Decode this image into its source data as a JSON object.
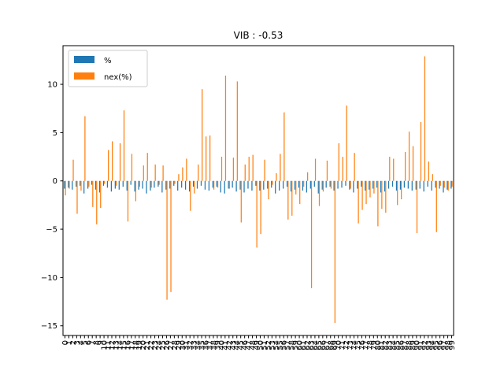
{
  "chart_data": {
    "type": "bar",
    "title": "VIB : -0.53",
    "xlabel": "",
    "ylabel": "",
    "ylim": [
      -16,
      14
    ],
    "yticks": [
      -15,
      -10,
      -5,
      0,
      5,
      10
    ],
    "grid": false,
    "legend_position": "top-left",
    "categories": [
      "0",
      "1",
      "2",
      "3",
      "4",
      "5",
      "6",
      "7",
      "8",
      "9",
      "10",
      "11",
      "12",
      "13",
      "14",
      "15",
      "16",
      "17",
      "18",
      "19",
      "20",
      "21",
      "22",
      "23",
      "24",
      "25",
      "26",
      "27",
      "28",
      "29",
      "30",
      "31",
      "32",
      "33",
      "34",
      "35",
      "36",
      "37",
      "38",
      "39",
      "40",
      "41",
      "42",
      "43",
      "44",
      "45",
      "46",
      "47",
      "48",
      "49",
      "50",
      "51",
      "52",
      "53",
      "54",
      "55",
      "56",
      "57",
      "58",
      "59",
      "60",
      "61",
      "62",
      "63",
      "64",
      "65",
      "66",
      "67",
      "68",
      "69",
      "70",
      "71",
      "72",
      "73",
      "74",
      "75",
      "76",
      "77",
      "78",
      "79",
      "80",
      "81",
      "82",
      "83",
      "84",
      "85",
      "86",
      "87",
      "88",
      "89",
      "90",
      "91",
      "92",
      "93",
      "94",
      "95",
      "96",
      "97",
      "98",
      "99"
    ],
    "series": [
      {
        "name": "%",
        "color": "#1f77b4",
        "values": [
          -0.8,
          -0.7,
          -0.9,
          -0.6,
          -0.5,
          -1.3,
          -0.8,
          -0.4,
          -0.9,
          -1.2,
          -0.5,
          -0.7,
          -1.1,
          -0.8,
          -0.9,
          -0.6,
          -1.0,
          -0.4,
          -1.1,
          -0.9,
          -0.8,
          -1.3,
          -1.0,
          -0.7,
          -0.6,
          -1.2,
          -0.9,
          -0.8,
          -0.5,
          -1.0,
          -0.7,
          -0.9,
          -1.1,
          -0.6,
          -0.8,
          -0.5,
          -0.9,
          -1.0,
          -0.7,
          -0.6,
          -1.2,
          -1.3,
          -0.8,
          -0.7,
          -1.1,
          -0.9,
          -1.2,
          -0.8,
          -1.0,
          -0.5,
          -1.0,
          -0.9,
          -0.8,
          -0.7,
          -1.3,
          -1.0,
          -0.8,
          -0.6,
          -1.1,
          -0.9,
          -0.7,
          -1.0,
          -1.2,
          -0.8,
          -0.6,
          -1.3,
          -0.9,
          -0.7,
          -0.6,
          -1.0,
          -0.8,
          -0.7,
          -0.5,
          -0.9,
          -1.2,
          -0.8,
          -0.6,
          -1.0,
          -0.9,
          -0.8,
          -0.7,
          -1.2,
          -1.1,
          -0.8,
          -0.6,
          -1.0,
          -0.9,
          -0.7,
          -0.8,
          -1.0,
          -0.9,
          -0.8,
          -1.1,
          -0.6,
          -1.0,
          -0.7,
          -0.8,
          -1.2,
          -0.9,
          -0.8
        ]
      },
      {
        "name": "nex(%)",
        "color": "#ff7f0e",
        "values": [
          -1.5,
          -0.8,
          2.2,
          -3.4,
          -1.0,
          6.7,
          -0.6,
          -2.7,
          -4.5,
          -2.8,
          -0.3,
          3.2,
          4.1,
          -0.5,
          3.9,
          7.3,
          -4.2,
          2.8,
          -2.1,
          -0.6,
          1.6,
          2.9,
          -0.7,
          1.7,
          -0.4,
          1.6,
          -12.3,
          -11.5,
          -0.3,
          0.7,
          1.4,
          2.3,
          -3.1,
          -1.3,
          1.7,
          9.5,
          4.6,
          4.7,
          -0.9,
          -0.7,
          2.5,
          10.9,
          -0.8,
          2.4,
          10.3,
          -4.3,
          1.7,
          2.5,
          2.7,
          -6.9,
          -5.5,
          2.2,
          -1.9,
          -0.4,
          0.8,
          2.8,
          7.1,
          -4.0,
          -3.6,
          -1.4,
          -2.4,
          -0.6,
          0.9,
          -11.1,
          2.3,
          -2.6,
          -1.1,
          2.1,
          -0.8,
          -14.7,
          3.9,
          2.5,
          7.8,
          -0.8,
          2.9,
          -4.4,
          -3.0,
          -2.4,
          -1.7,
          -1.3,
          -4.7,
          -2.9,
          -3.3,
          2.5,
          2.3,
          -2.5,
          -1.9,
          3.0,
          5.1,
          3.6,
          -5.4,
          6.1,
          12.9,
          2.0,
          0.7,
          -5.3,
          -0.5,
          -0.7,
          -1.0,
          -0.6
        ]
      }
    ]
  }
}
